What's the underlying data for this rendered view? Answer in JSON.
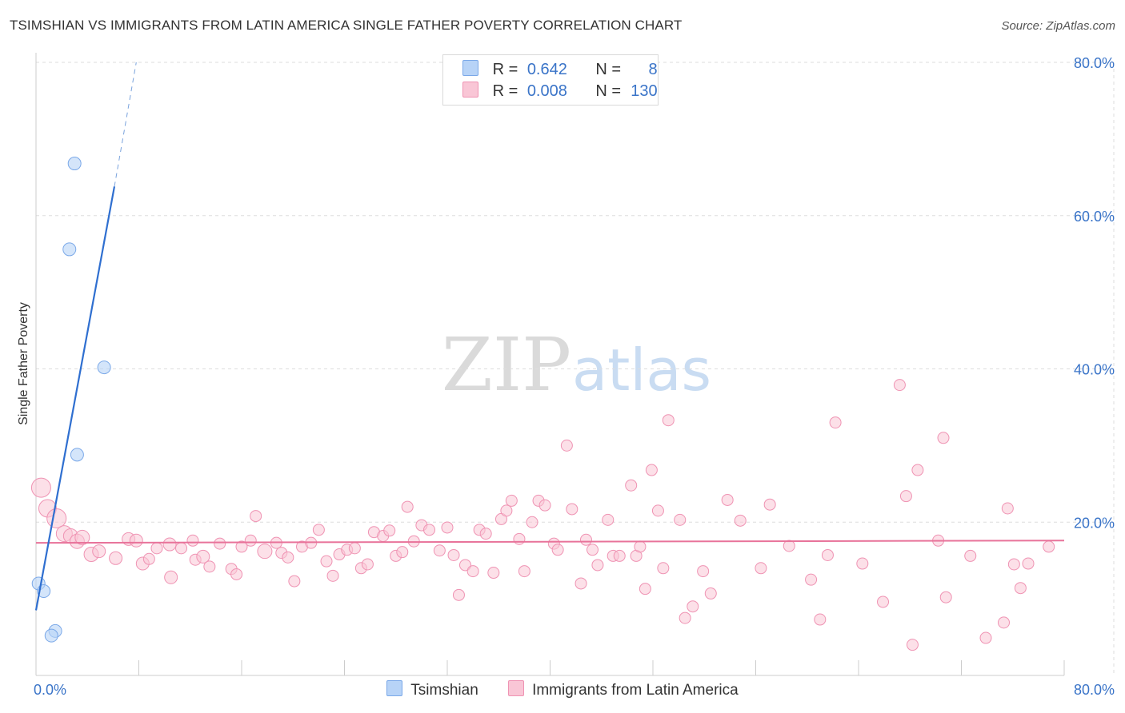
{
  "header": {
    "title": "TSIMSHIAN VS IMMIGRANTS FROM LATIN AMERICA SINGLE FATHER POVERTY CORRELATION CHART",
    "source": "Source: ZipAtlas.com"
  },
  "legend": {
    "rows": [
      {
        "r_label": "R =",
        "r_value": "0.642",
        "n_label": "N =",
        "n_value": "8"
      },
      {
        "r_label": "R =",
        "r_value": "0.008",
        "n_label": "N =",
        "n_value": "130"
      }
    ]
  },
  "watermark": {
    "zip": "ZIP",
    "atlas": "atlas"
  },
  "colors": {
    "blue_fill": "#b7d3f7",
    "blue_stroke": "#7aa8e8",
    "blue_line": "#2f6fd0",
    "pink_fill": "#f9c6d6",
    "pink_stroke": "#ef93b3",
    "pink_line": "#e8739a",
    "tick_text": "#3a74c8",
    "grid": "#dddddd"
  },
  "chart_data": {
    "type": "scatter",
    "title": "TSIMSHIAN VS IMMIGRANTS FROM LATIN AMERICA SINGLE FATHER POVERTY CORRELATION CHART",
    "xlabel": "",
    "ylabel": "Single Father Poverty",
    "xlim": [
      0,
      80
    ],
    "ylim": [
      0,
      80
    ],
    "x_tick_labels": [
      "0.0%",
      "80.0%"
    ],
    "y_ticks": [
      20,
      40,
      60,
      80
    ],
    "y_tick_labels": [
      "20.0%",
      "40.0%",
      "60.0%",
      "80.0%"
    ],
    "grid": true,
    "legend_position": "bottom",
    "series": [
      {
        "name": "Tsimshian",
        "color": "#b7d3f7",
        "points": [
          [
            3.0,
            66.8
          ],
          [
            2.6,
            55.6
          ],
          [
            5.3,
            40.2
          ],
          [
            3.2,
            28.8
          ],
          [
            0.2,
            12.0
          ],
          [
            0.6,
            11.0
          ],
          [
            1.5,
            5.8
          ],
          [
            1.2,
            5.2
          ]
        ],
        "trend": {
          "from": [
            0.0,
            8.5
          ],
          "to": [
            6.1,
            63.8
          ],
          "dash_to": [
            7.8,
            80.0
          ]
        }
      },
      {
        "name": "Immigrants from Latin America",
        "color": "#f9c6d6",
        "trend": {
          "from": [
            0.0,
            17.3
          ],
          "to": [
            80.0,
            17.6
          ]
        },
        "points": [
          [
            0.4,
            24.5,
            20
          ],
          [
            0.9,
            21.8,
            18
          ],
          [
            1.6,
            20.5,
            20
          ],
          [
            2.2,
            18.5,
            16
          ],
          [
            2.7,
            18.2,
            14
          ],
          [
            3.2,
            17.5,
            14
          ],
          [
            3.6,
            18.0,
            14
          ],
          [
            4.3,
            15.8,
            14
          ],
          [
            4.9,
            16.2,
            12
          ],
          [
            6.2,
            15.3,
            12
          ],
          [
            7.2,
            17.8,
            12
          ],
          [
            7.8,
            17.6,
            12
          ],
          [
            8.3,
            14.6,
            12
          ],
          [
            8.8,
            15.2,
            10
          ],
          [
            9.4,
            16.6,
            10
          ],
          [
            10.4,
            17.1,
            12
          ],
          [
            10.5,
            12.8,
            12
          ],
          [
            11.3,
            16.6,
            10
          ],
          [
            12.2,
            17.6,
            10
          ],
          [
            12.4,
            15.1,
            10
          ],
          [
            13.0,
            15.5,
            12
          ],
          [
            13.5,
            14.2,
            10
          ],
          [
            14.3,
            17.2,
            10
          ],
          [
            15.2,
            13.9,
            10
          ],
          [
            15.6,
            13.2,
            10
          ],
          [
            16.0,
            16.8,
            10
          ],
          [
            16.7,
            17.6,
            10
          ],
          [
            17.1,
            20.8,
            10
          ],
          [
            17.8,
            16.2,
            14
          ],
          [
            18.7,
            17.3,
            10
          ],
          [
            19.1,
            16.0,
            10
          ],
          [
            19.6,
            15.4,
            10
          ],
          [
            20.1,
            12.3,
            10
          ],
          [
            20.7,
            16.8,
            10
          ],
          [
            21.4,
            17.3,
            10
          ],
          [
            22.0,
            19.0,
            10
          ],
          [
            22.6,
            14.9,
            10
          ],
          [
            23.1,
            13.0,
            10
          ],
          [
            23.6,
            15.8,
            10
          ],
          [
            24.2,
            16.4,
            10
          ],
          [
            24.8,
            16.6,
            10
          ],
          [
            25.3,
            14.0,
            10
          ],
          [
            25.8,
            14.5,
            10
          ],
          [
            26.3,
            18.7,
            10
          ],
          [
            27.0,
            18.2,
            10
          ],
          [
            27.5,
            18.9,
            10
          ],
          [
            28.0,
            15.6,
            10
          ],
          [
            28.5,
            16.1,
            10
          ],
          [
            28.9,
            22.0,
            10
          ],
          [
            29.4,
            17.5,
            10
          ],
          [
            30.0,
            19.6,
            10
          ],
          [
            30.6,
            19.0,
            10
          ],
          [
            31.4,
            16.3,
            10
          ],
          [
            32.0,
            19.3,
            10
          ],
          [
            32.5,
            15.7,
            10
          ],
          [
            32.9,
            10.5,
            10
          ],
          [
            33.4,
            14.4,
            10
          ],
          [
            34.0,
            13.6,
            10
          ],
          [
            34.5,
            19.0,
            10
          ],
          [
            35.0,
            18.5,
            10
          ],
          [
            35.6,
            13.4,
            10
          ],
          [
            36.2,
            20.4,
            10
          ],
          [
            36.6,
            21.5,
            10
          ],
          [
            37.0,
            22.8,
            10
          ],
          [
            37.6,
            17.8,
            10
          ],
          [
            38.0,
            13.6,
            10
          ],
          [
            38.6,
            20.0,
            10
          ],
          [
            39.1,
            22.8,
            10
          ],
          [
            39.6,
            22.2,
            10
          ],
          [
            40.3,
            17.2,
            10
          ],
          [
            40.6,
            16.4,
            10
          ],
          [
            41.3,
            30.0,
            10
          ],
          [
            41.7,
            21.7,
            10
          ],
          [
            42.4,
            12.0,
            10
          ],
          [
            42.8,
            17.7,
            10
          ],
          [
            43.3,
            16.4,
            10
          ],
          [
            43.7,
            14.4,
            10
          ],
          [
            44.5,
            20.3,
            10
          ],
          [
            44.9,
            15.6,
            10
          ],
          [
            45.4,
            15.6,
            10
          ],
          [
            46.3,
            24.8,
            10
          ],
          [
            46.7,
            15.6,
            10
          ],
          [
            47.0,
            16.8,
            10
          ],
          [
            47.4,
            11.3,
            10
          ],
          [
            47.9,
            26.8,
            10
          ],
          [
            48.4,
            21.5,
            10
          ],
          [
            48.8,
            14.0,
            10
          ],
          [
            49.2,
            33.3,
            10
          ],
          [
            50.1,
            20.3,
            10
          ],
          [
            50.5,
            7.5,
            10
          ],
          [
            51.1,
            9.0,
            10
          ],
          [
            51.9,
            13.6,
            10
          ],
          [
            52.5,
            10.7,
            10
          ],
          [
            53.8,
            22.9,
            10
          ],
          [
            54.8,
            20.2,
            10
          ],
          [
            56.4,
            14.0,
            10
          ],
          [
            57.1,
            22.3,
            10
          ],
          [
            58.6,
            16.9,
            10
          ],
          [
            60.3,
            12.5,
            10
          ],
          [
            61.0,
            7.3,
            10
          ],
          [
            61.6,
            15.7,
            10
          ],
          [
            62.2,
            33.0,
            10
          ],
          [
            64.3,
            14.6,
            10
          ],
          [
            65.9,
            9.6,
            10
          ],
          [
            67.2,
            37.9,
            10
          ],
          [
            67.7,
            23.4,
            10
          ],
          [
            68.2,
            4.0,
            10
          ],
          [
            68.6,
            26.8,
            10
          ],
          [
            70.2,
            17.6,
            10
          ],
          [
            70.6,
            31.0,
            10
          ],
          [
            70.8,
            10.2,
            10
          ],
          [
            72.7,
            15.6,
            10
          ],
          [
            73.9,
            4.9,
            10
          ],
          [
            75.3,
            6.9,
            10
          ],
          [
            75.6,
            21.8,
            10
          ],
          [
            76.1,
            14.5,
            10
          ],
          [
            76.6,
            11.4,
            10
          ],
          [
            77.2,
            14.6,
            10
          ],
          [
            78.8,
            16.8,
            10
          ]
        ]
      }
    ]
  }
}
